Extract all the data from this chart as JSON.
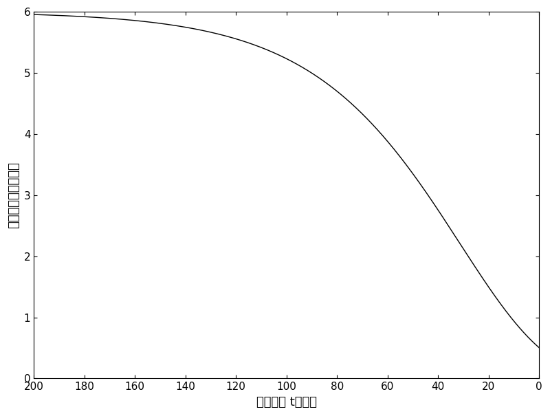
{
  "title": "",
  "xlabel": "退火温度 t（度）",
  "ylabel": "交换波数点数（个）",
  "xlim": [
    200,
    0
  ],
  "ylim": [
    0,
    6
  ],
  "x_ticks": [
    200,
    180,
    160,
    140,
    120,
    100,
    80,
    60,
    40,
    20,
    0
  ],
  "y_ticks": [
    0,
    1,
    2,
    3,
    4,
    5,
    6
  ],
  "line_color": "#000000",
  "line_width": 1.0,
  "background_color": "#ffffff",
  "t_max": 200,
  "t_min": 0,
  "weibull_c": 45.0,
  "weibull_n": 1.8,
  "y_scale": 6.0,
  "figsize": [
    8.0,
    6.05
  ],
  "dpi": 100
}
